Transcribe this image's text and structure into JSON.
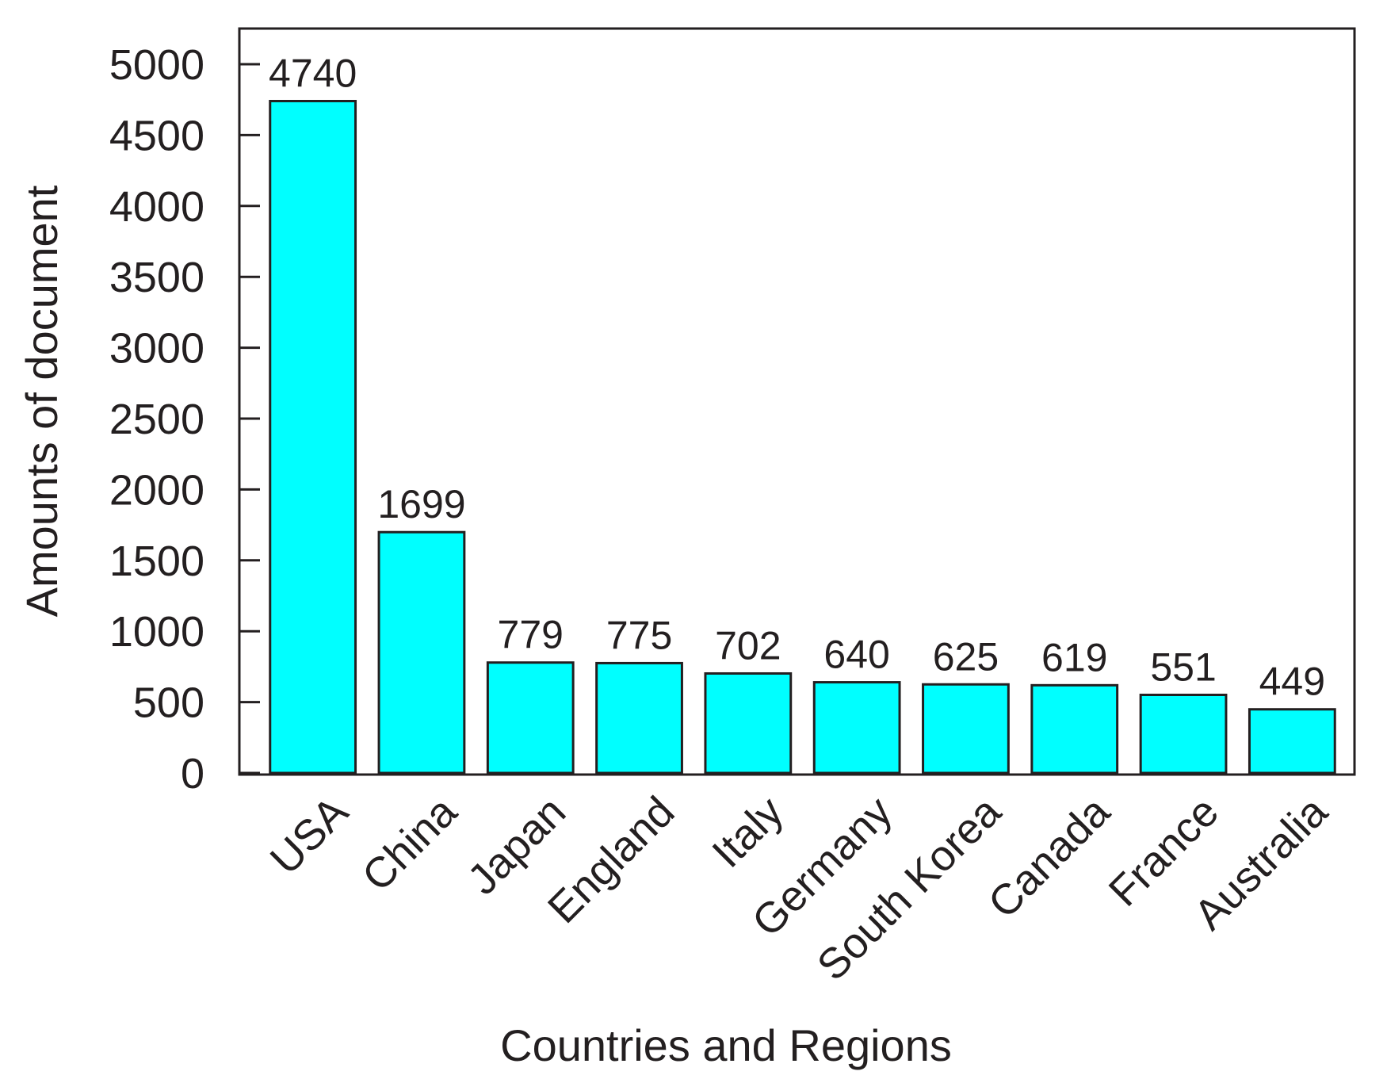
{
  "chart_data": {
    "type": "bar",
    "title": "",
    "xlabel": "Countries and Regions",
    "ylabel": "Amounts of document",
    "categories": [
      "USA",
      "China",
      "Japan",
      "England",
      "Italy",
      "Germany",
      "South Korea",
      "Canada",
      "France",
      "Australia"
    ],
    "values": [
      4740,
      1699,
      779,
      775,
      702,
      640,
      625,
      619,
      551,
      449
    ],
    "data_labels": [
      "4740",
      "1699",
      "779",
      "775",
      "702",
      "640",
      "625",
      "619",
      "551",
      "449"
    ],
    "ylim": [
      0,
      5000
    ],
    "yticks": [
      0,
      500,
      1000,
      1500,
      2000,
      2500,
      3000,
      3500,
      4000,
      4500,
      5000
    ],
    "grid": false,
    "legend": "none",
    "bar_color": "#00ffff",
    "bar_edge_color": "#231f20",
    "text_color": "#231f20"
  }
}
